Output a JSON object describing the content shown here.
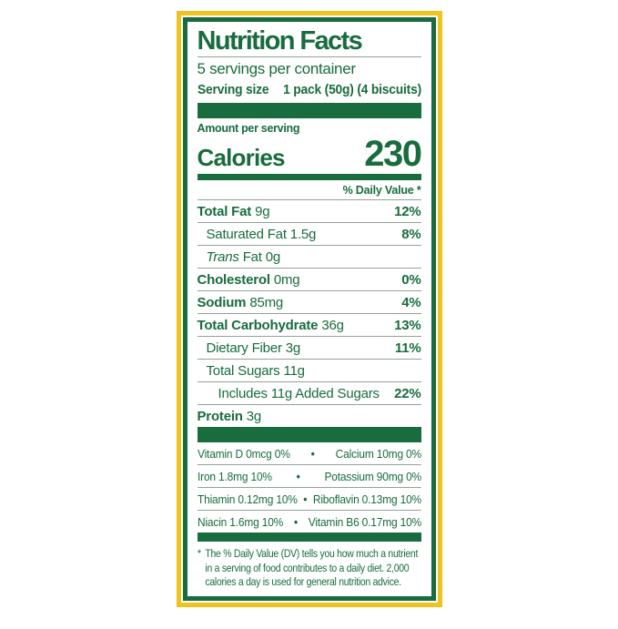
{
  "label": {
    "title": "Nutrition Facts",
    "servings_per_container": "5 servings per container",
    "serving_size": {
      "label": "Serving size",
      "value": "1 pack (50g) (4 biscuits)"
    },
    "amount_per_serving": "Amount per serving",
    "calories": {
      "label": "Calories",
      "value": "230"
    },
    "daily_value_header": "% Daily Value *",
    "nutrients": [
      {
        "name": "Total Fat",
        "amount": "9g",
        "dv": "12%"
      },
      {
        "name": "Saturated Fat",
        "amount": "1.5g",
        "dv": "8%"
      },
      {
        "name_italic": "Trans",
        "name": "Fat",
        "amount": "0g",
        "dv": ""
      },
      {
        "name": "Cholesterol",
        "amount": "0mg",
        "dv": "0%"
      },
      {
        "name": "Sodium",
        "amount": "85mg",
        "dv": "4%"
      },
      {
        "name": "Total Carbohydrate",
        "amount": "36g",
        "dv": "13%"
      },
      {
        "name": "Dietary Fiber",
        "amount": "3g",
        "dv": "11%"
      },
      {
        "name": "Total Sugars",
        "amount": "11g",
        "dv": ""
      },
      {
        "name": "Includes 11g Added Sugars",
        "amount": "",
        "dv": "22%"
      },
      {
        "name": "Protein",
        "amount": "3g",
        "dv": ""
      }
    ],
    "bullet": "•",
    "micronutrients": [
      {
        "left": "Vitamin D 0mcg 0%",
        "right": "Calcium 10mg 0%"
      },
      {
        "left": "Iron 1.8mg 10%",
        "right": "Potassium 90mg 0%"
      },
      {
        "left": "Thiamin 0.12mg 10%",
        "right": "Riboflavin 0.13mg 10%"
      },
      {
        "left": "Niacin 1.6mg 10%",
        "right": "Vitamin B6 0.17mg 10%"
      }
    ],
    "footnote_marker": "*",
    "footnote": "The % Daily Value (DV) tells you how much a nutrient in a serving of food contributes to a daily diet. 2,000 calories a day is used for general nutrition advice.",
    "colors": {
      "green": "#186C3D",
      "yellow": "#EFC31E"
    }
  }
}
